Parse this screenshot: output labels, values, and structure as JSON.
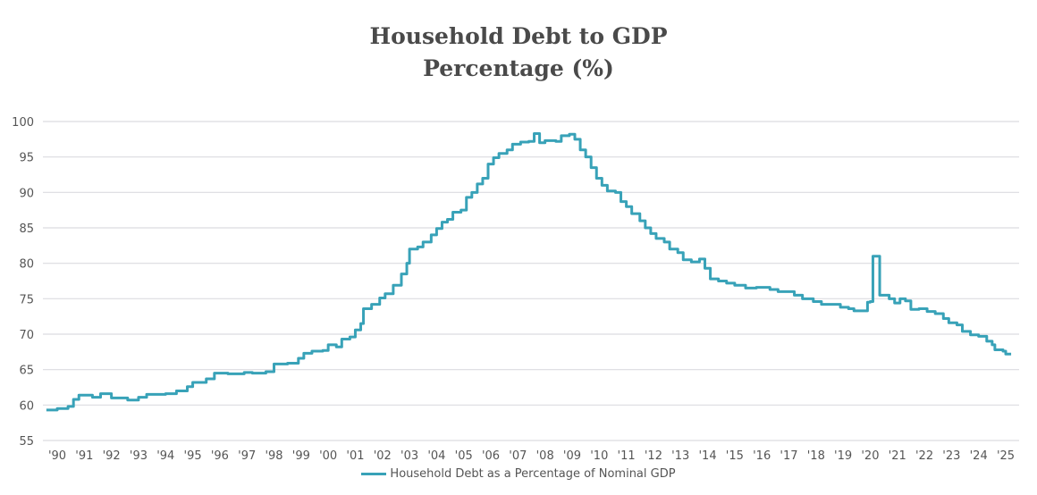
{
  "chart_data": {
    "type": "line",
    "title": "Household Debt to GDP",
    "subtitle": "Percentage (%)",
    "xlabel": "",
    "ylabel": "",
    "ylim": [
      55,
      100
    ],
    "yticks": [
      55,
      60,
      65,
      70,
      75,
      80,
      85,
      90,
      95,
      100
    ],
    "xticks": [
      "'90",
      "'91",
      "'92",
      "'93",
      "'94",
      "'95",
      "'96",
      "'97",
      "'98",
      "'99",
      "'00",
      "'01",
      "'02",
      "'03",
      "'04",
      "'05",
      "'06",
      "'07",
      "'08",
      "'09",
      "'10",
      "'11",
      "'12",
      "'13",
      "'14",
      "'15",
      "'16",
      "'17",
      "'18",
      "'19",
      "'20",
      "'21",
      "'22",
      "'23",
      "'24",
      "'25"
    ],
    "grid": true,
    "legend_position": "bottom",
    "color": "#38a2b8",
    "series": [
      {
        "name": "Household Debt as a Percentage of Nominal GDP",
        "x": [
          1989.6,
          1990.0,
          1990.4,
          1990.6,
          1990.8,
          1991.3,
          1991.6,
          1992.0,
          1992.6,
          1993.0,
          1993.3,
          1994.0,
          1994.4,
          1994.8,
          1995.0,
          1995.5,
          1995.8,
          1996.3,
          1996.9,
          1997.2,
          1997.7,
          1998.0,
          1998.5,
          1998.9,
          1999.1,
          1999.4,
          1999.8,
          2000.0,
          2000.3,
          2000.5,
          2000.8,
          2001.0,
          2001.2,
          2001.3,
          2001.6,
          2001.9,
          2002.1,
          2002.4,
          2002.7,
          2002.9,
          2003.0,
          2003.3,
          2003.5,
          2003.8,
          2004.0,
          2004.2,
          2004.4,
          2004.6,
          2004.9,
          2005.1,
          2005.3,
          2005.5,
          2005.7,
          2005.9,
          2006.1,
          2006.3,
          2006.6,
          2006.8,
          2007.1,
          2007.4,
          2007.6,
          2007.8,
          2008.0,
          2008.4,
          2008.6,
          2008.9,
          2009.1,
          2009.3,
          2009.5,
          2009.7,
          2009.9,
          2010.1,
          2010.3,
          2010.6,
          2010.8,
          2011.0,
          2011.2,
          2011.5,
          2011.7,
          2011.9,
          2012.1,
          2012.4,
          2012.6,
          2012.9,
          2013.1,
          2013.4,
          2013.7,
          2013.9,
          2014.1,
          2014.4,
          2014.7,
          2015.0,
          2015.4,
          2015.8,
          2016.3,
          2016.6,
          2017.0,
          2017.2,
          2017.5,
          2017.9,
          2018.2,
          2018.6,
          2018.9,
          2019.2,
          2019.4,
          2019.8,
          2019.9,
          2020.0,
          2020.1,
          2020.3,
          2020.35,
          2020.7,
          2020.9,
          2021.1,
          2021.3,
          2021.5,
          2021.8,
          2022.1,
          2022.4,
          2022.7,
          2022.9,
          2023.2,
          2023.4,
          2023.7,
          2024.0,
          2024.3,
          2024.5,
          2024.6,
          2024.9,
          2025.0,
          2025.2
        ],
        "values": [
          59.3,
          59.5,
          59.8,
          60.8,
          61.4,
          61.1,
          61.6,
          61.0,
          60.7,
          61.1,
          61.5,
          61.6,
          62.0,
          62.6,
          63.2,
          63.7,
          64.5,
          64.4,
          64.6,
          64.5,
          64.7,
          65.8,
          65.9,
          66.6,
          67.3,
          67.6,
          67.7,
          68.5,
          68.2,
          69.3,
          69.6,
          70.6,
          71.5,
          73.6,
          74.2,
          75.1,
          75.7,
          76.9,
          78.5,
          80.0,
          82.0,
          82.3,
          83.0,
          84.0,
          84.9,
          85.8,
          86.2,
          87.2,
          87.5,
          89.3,
          90.0,
          91.2,
          92.0,
          94.0,
          94.9,
          95.5,
          96.0,
          96.8,
          97.1,
          97.2,
          98.3,
          97.0,
          97.3,
          97.2,
          98.0,
          98.2,
          97.5,
          96.0,
          95.0,
          93.5,
          92.0,
          91.0,
          90.2,
          90.0,
          88.7,
          88.0,
          87.0,
          86.0,
          85.0,
          84.2,
          83.5,
          83.0,
          82.0,
          81.5,
          80.5,
          80.2,
          80.6,
          79.3,
          77.8,
          77.5,
          77.2,
          76.9,
          76.5,
          76.6,
          76.3,
          76.0,
          76.0,
          75.5,
          75.0,
          74.6,
          74.2,
          74.2,
          73.8,
          73.6,
          73.3,
          73.3,
          74.5,
          74.6,
          81.0,
          81.0,
          75.5,
          75.0,
          74.4,
          75.0,
          74.7,
          73.5,
          73.6,
          73.2,
          72.9,
          72.2,
          71.6,
          71.3,
          70.4,
          69.9,
          69.7,
          69.0,
          68.5,
          67.8,
          67.6,
          67.2,
          67.2
        ]
      }
    ]
  }
}
